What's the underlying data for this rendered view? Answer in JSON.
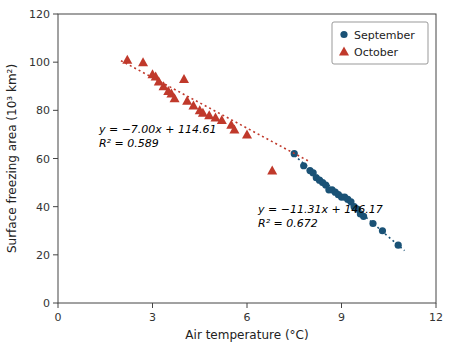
{
  "chart_data": {
    "type": "scatter",
    "x_label": "Air temperature (°C)",
    "y_label": "Surface freezing area (10³ km²)",
    "xlim": [
      0,
      12
    ],
    "ylim": [
      0,
      120
    ],
    "xticks": [
      0,
      3,
      6,
      9,
      12
    ],
    "yticks": [
      0,
      20,
      40,
      60,
      80,
      100,
      120
    ],
    "grid": false,
    "legend": "upper right",
    "series": [
      {
        "name": "September",
        "type": "scatter",
        "marker": "circle",
        "color": "#1a5276",
        "x": [
          7.5,
          7.8,
          8.0,
          8.1,
          8.2,
          8.3,
          8.4,
          8.5,
          8.6,
          8.7,
          8.8,
          8.9,
          9.0,
          9.1,
          9.2,
          9.3,
          9.4,
          9.5,
          9.6,
          9.7,
          10.0,
          10.3,
          10.8
        ],
        "values": [
          62,
          57,
          55,
          54,
          52,
          51,
          50,
          49,
          47,
          47,
          46,
          45,
          44,
          44,
          43,
          42,
          40,
          39,
          37,
          36,
          33,
          30,
          24
        ]
      },
      {
        "name": "October",
        "type": "scatter",
        "marker": "triangle",
        "color": "#c0392b",
        "x": [
          2.2,
          2.7,
          3.0,
          3.1,
          3.2,
          3.35,
          3.5,
          3.6,
          3.7,
          4.0,
          4.1,
          4.3,
          4.5,
          4.6,
          4.8,
          5.0,
          5.2,
          5.5,
          5.6,
          6.0,
          6.8
        ],
        "values": [
          101,
          100,
          95,
          94,
          92,
          90,
          88,
          87,
          85,
          93,
          84,
          82,
          80,
          79,
          78,
          77,
          76,
          74,
          72,
          70,
          55
        ]
      },
      {
        "type": "line",
        "line_style": "dotted",
        "color": "#1a5276",
        "x": [
          7.5,
          11.0
        ],
        "values": [
          61.345,
          21.76
        ]
      },
      {
        "type": "line",
        "line_style": "dotted",
        "color": "#c0392b",
        "x": [
          2.0,
          8.0
        ],
        "values": [
          100.61,
          58.61
        ]
      }
    ],
    "annotations": [
      {
        "text": [
          "y = −7.00x + 114.61",
          "R² = 0.589"
        ],
        "x": 1.3,
        "y": 75
      },
      {
        "text": [
          "y = −11.31x + 146.17",
          "R² = 0.672"
        ],
        "x": 6.35,
        "y": 42
      }
    ]
  }
}
